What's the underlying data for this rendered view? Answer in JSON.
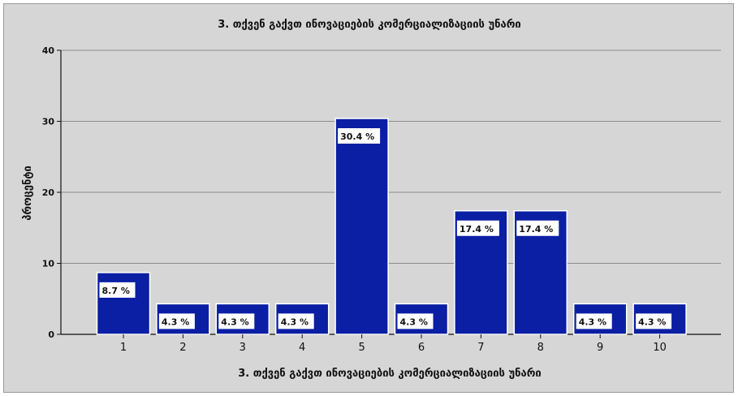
{
  "chart_data": {
    "type": "bar",
    "title": "3. თქვენ გაქვთ ინოვაციების კომერციალიზაციის უნარი",
    "xlabel": "3. თქვენ გაქვთ ინოვაციების კომერციალიზაციის უნარი",
    "ylabel": "პროცენტი",
    "categories": [
      "1",
      "2",
      "3",
      "4",
      "5",
      "6",
      "7",
      "8",
      "9",
      "10"
    ],
    "values": [
      8.7,
      4.3,
      4.3,
      4.3,
      30.4,
      4.3,
      17.4,
      17.4,
      4.3,
      4.3
    ],
    "data_labels": [
      "8.7 %",
      "4.3 %",
      "4.3 %",
      "4.3 %",
      "30.4 %",
      "4.3 %",
      "17.4 %",
      "17.4 %",
      "4.3 %",
      "4.3 %"
    ],
    "ylim": [
      0,
      40
    ],
    "yticks": [
      0,
      10,
      20,
      30,
      40
    ],
    "grid": true,
    "legend": "none",
    "colors": {
      "bar": "#0a1fa3",
      "background": "#d6d6d6",
      "grid": "#8c8c8c",
      "label_box": "#ffffff"
    }
  }
}
